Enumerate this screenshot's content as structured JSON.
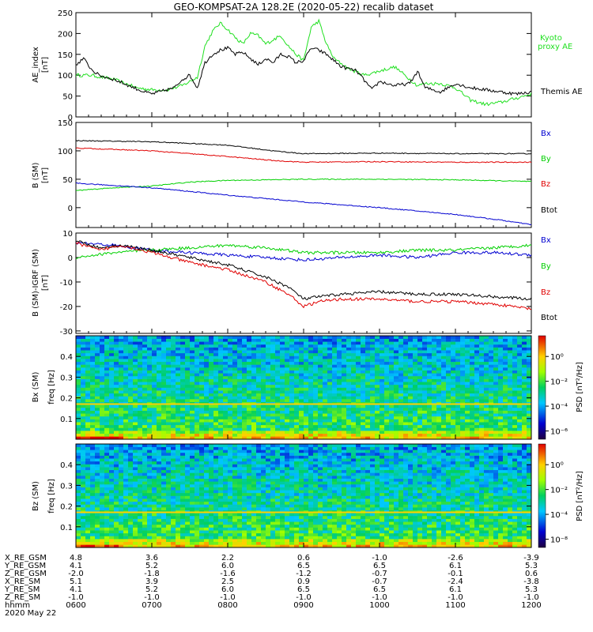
{
  "title": "GEO-KOMPSAT-2A 128.2E (2020-05-22) recalib dataset",
  "colors": {
    "black": "#000000",
    "red": "#e00000",
    "green": "#00d000",
    "blue": "#0000d0",
    "ae_green": "#20e020"
  },
  "chart_data": [
    {
      "id": "ae",
      "type": "line",
      "ylabel": "AE_index\n[nT]",
      "ylim": [
        0,
        250
      ],
      "yticks": [
        0,
        50,
        100,
        150,
        200,
        250
      ],
      "xlim": [
        6.0,
        12.0
      ],
      "series": [
        {
          "name": "Kyoto proxy AE",
          "color": "#20e020",
          "x": [
            6.0,
            6.2,
            6.5,
            6.8,
            7.0,
            7.2,
            7.4,
            7.6,
            7.7,
            7.8,
            7.9,
            8.0,
            8.1,
            8.2,
            8.3,
            8.4,
            8.5,
            8.6,
            8.7,
            8.8,
            8.9,
            9.0,
            9.1,
            9.2,
            9.3,
            9.4,
            9.6,
            9.8,
            10.0,
            10.2,
            10.4,
            10.5,
            10.6,
            10.8,
            11.0,
            11.2,
            11.4,
            11.6,
            11.8,
            12.0
          ],
          "y": [
            100,
            100,
            90,
            70,
            65,
            65,
            75,
            95,
            170,
            205,
            225,
            210,
            190,
            175,
            200,
            195,
            175,
            185,
            195,
            170,
            150,
            135,
            215,
            230,
            175,
            140,
            115,
            100,
            110,
            120,
            90,
            75,
            80,
            80,
            70,
            40,
            30,
            35,
            45,
            55
          ]
        },
        {
          "name": "Themis AE",
          "color": "#000000",
          "x": [
            6.0,
            6.1,
            6.2,
            6.3,
            6.5,
            6.7,
            6.9,
            7.0,
            7.2,
            7.3,
            7.4,
            7.5,
            7.6,
            7.7,
            7.8,
            7.9,
            8.0,
            8.1,
            8.2,
            8.3,
            8.4,
            8.5,
            8.6,
            8.7,
            8.8,
            8.9,
            9.0,
            9.1,
            9.2,
            9.3,
            9.5,
            9.7,
            9.9,
            10.0,
            10.2,
            10.4,
            10.5,
            10.6,
            10.8,
            11.0,
            11.2,
            11.4,
            11.6,
            11.8,
            12.0
          ],
          "y": [
            125,
            140,
            115,
            100,
            90,
            75,
            60,
            55,
            65,
            70,
            90,
            100,
            70,
            130,
            150,
            160,
            165,
            150,
            155,
            140,
            125,
            140,
            130,
            150,
            145,
            130,
            135,
            165,
            160,
            150,
            120,
            110,
            65,
            85,
            75,
            80,
            110,
            70,
            60,
            80,
            70,
            65,
            60,
            55,
            60
          ]
        }
      ]
    },
    {
      "id": "b",
      "type": "line",
      "ylabel": "B (SM)\n[nT]",
      "ylim": [
        -35,
        150
      ],
      "yticks": [
        0,
        50,
        100,
        150
      ],
      "xlim": [
        6.0,
        12.0
      ],
      "series": [
        {
          "name": "Btot",
          "color": "#000000",
          "x": [
            6.0,
            7.0,
            8.0,
            8.6,
            9.0,
            10.0,
            11.0,
            12.0
          ],
          "y": [
            118,
            116,
            110,
            100,
            95,
            96,
            95,
            95
          ]
        },
        {
          "name": "Bz",
          "color": "#e00000",
          "x": [
            6.0,
            7.0,
            8.0,
            8.6,
            9.0,
            10.0,
            11.0,
            12.0
          ],
          "y": [
            105,
            100,
            90,
            83,
            80,
            81,
            80,
            80
          ]
        },
        {
          "name": "By",
          "color": "#00d000",
          "x": [
            6.0,
            6.5,
            7.0,
            7.5,
            8.0,
            9.0,
            10.0,
            11.0,
            12.0
          ],
          "y": [
            30,
            35,
            38,
            45,
            48,
            50,
            50,
            49,
            46
          ]
        },
        {
          "name": "Bx",
          "color": "#0000d0",
          "x": [
            6.0,
            7.0,
            8.0,
            9.0,
            10.0,
            11.0,
            11.6,
            12.0
          ],
          "y": [
            43,
            35,
            22,
            10,
            0,
            -12,
            -22,
            -30
          ]
        }
      ]
    },
    {
      "id": "dbm",
      "type": "line",
      "ylabel": "B (SM)-IGRF (SM)\n[nT]",
      "ylim": [
        -31,
        10
      ],
      "yticks": [
        -30,
        -20,
        -10,
        0,
        10
      ],
      "xlim": [
        6.0,
        12.0
      ],
      "series": [
        {
          "name": "Bx",
          "color": "#0000d0",
          "x": [
            6.0,
            6.5,
            7.0,
            7.5,
            8.0,
            8.5,
            9.0,
            9.5,
            10.0,
            10.5,
            11.0,
            11.5,
            12.0
          ],
          "y": [
            6,
            5,
            3,
            2,
            1,
            0,
            -1,
            0,
            1,
            0,
            2,
            2,
            1
          ]
        },
        {
          "name": "By",
          "color": "#00d000",
          "x": [
            6.0,
            6.5,
            7.0,
            7.5,
            8.0,
            8.5,
            9.0,
            9.5,
            10.0,
            10.5,
            11.0,
            11.5,
            12.0
          ],
          "y": [
            0,
            2,
            3,
            4,
            5,
            4,
            2,
            2,
            2,
            3,
            3,
            4,
            5
          ]
        },
        {
          "name": "Btot",
          "color": "#000000",
          "x": [
            6.0,
            6.3,
            6.6,
            7.0,
            7.5,
            8.0,
            8.5,
            8.8,
            9.0,
            9.2,
            9.5,
            10.0,
            10.5,
            11.0,
            11.5,
            12.0
          ],
          "y": [
            7,
            4,
            5,
            3,
            0,
            -3,
            -8,
            -12,
            -17,
            -16,
            -15,
            -14,
            -15,
            -15,
            -16,
            -17
          ]
        },
        {
          "name": "Bz",
          "color": "#e00000",
          "x": [
            6.0,
            6.3,
            6.6,
            7.0,
            7.5,
            8.0,
            8.5,
            8.8,
            9.0,
            9.2,
            9.5,
            10.0,
            10.5,
            11.0,
            11.5,
            12.0
          ],
          "y": [
            6,
            3,
            5,
            2,
            -2,
            -5,
            -10,
            -15,
            -20,
            -18,
            -17,
            -17,
            -18,
            -18,
            -19,
            -21
          ]
        }
      ]
    },
    {
      "id": "spec_bx",
      "type": "heatmap",
      "ylabel": "Bx (SM)",
      "flabel": "freq [Hz]",
      "ylim": [
        0,
        0.5
      ],
      "yticks": [
        0.1,
        0.2,
        0.3,
        0.4
      ],
      "resonance_freq": 0.17,
      "colorbar": {
        "label": "PSD [nT²/Hz]",
        "ticks": [
          "10⁰",
          "10⁻²",
          "10⁻⁴",
          "10⁻⁶"
        ]
      }
    },
    {
      "id": "spec_bz",
      "type": "heatmap",
      "ylabel": "Bz (SM)",
      "flabel": "freq [Hz]",
      "ylim": [
        0,
        0.5
      ],
      "yticks": [
        0.1,
        0.2,
        0.3,
        0.4
      ],
      "resonance_freq": 0.17,
      "colorbar": {
        "label": "PSD [nT²/Hz]",
        "ticks": [
          "10⁰",
          "10⁻²",
          "10⁻⁴",
          "10⁻⁸"
        ]
      }
    }
  ],
  "legends": {
    "ae": [
      {
        "text": "Kyoto\nproxy AE",
        "color": "#20e020"
      },
      {
        "text": "Themis AE",
        "color": "#000000"
      }
    ],
    "b": [
      {
        "text": "Bx",
        "color": "#0000d0"
      },
      {
        "text": "By",
        "color": "#00d000"
      },
      {
        "text": "Bz",
        "color": "#e00000"
      },
      {
        "text": "Btot",
        "color": "#000000"
      }
    ],
    "dbm": [
      {
        "text": "Bx",
        "color": "#0000d0"
      },
      {
        "text": "By",
        "color": "#00d000"
      },
      {
        "text": "Bz",
        "color": "#e00000"
      },
      {
        "text": "Btot",
        "color": "#000000"
      }
    ]
  },
  "orbit_table": {
    "labels": [
      "X_RE_GSM",
      "Y_RE_GSM",
      "Z_RE_GSM",
      "X_RE_SM",
      "Y_RE_SM",
      "Z_RE_SM",
      "hhmm",
      "2020 May 22"
    ],
    "columns": [
      {
        "time": "0600",
        "values": [
          "4.8",
          "4.1",
          "-2.0",
          "5.1",
          "4.1",
          "-1.0"
        ]
      },
      {
        "time": "0700",
        "values": [
          "3.6",
          "5.2",
          "-1.8",
          "3.9",
          "5.2",
          "-1.0"
        ]
      },
      {
        "time": "0800",
        "values": [
          "2.2",
          "6.0",
          "-1.6",
          "2.5",
          "6.0",
          "-1.0"
        ]
      },
      {
        "time": "0900",
        "values": [
          "0.6",
          "6.5",
          "-1.2",
          "0.9",
          "6.5",
          "-1.0"
        ]
      },
      {
        "time": "1000",
        "values": [
          "-1.0",
          "6.5",
          "-0.7",
          "-0.7",
          "6.5",
          "-1.0"
        ]
      },
      {
        "time": "1100",
        "values": [
          "-2.6",
          "6.1",
          "-0.1",
          "-2.4",
          "6.1",
          "-1.0"
        ]
      },
      {
        "time": "1200",
        "values": [
          "-3.9",
          "5.3",
          "0.6",
          "-3.8",
          "5.3",
          "-1.0"
        ]
      }
    ]
  }
}
